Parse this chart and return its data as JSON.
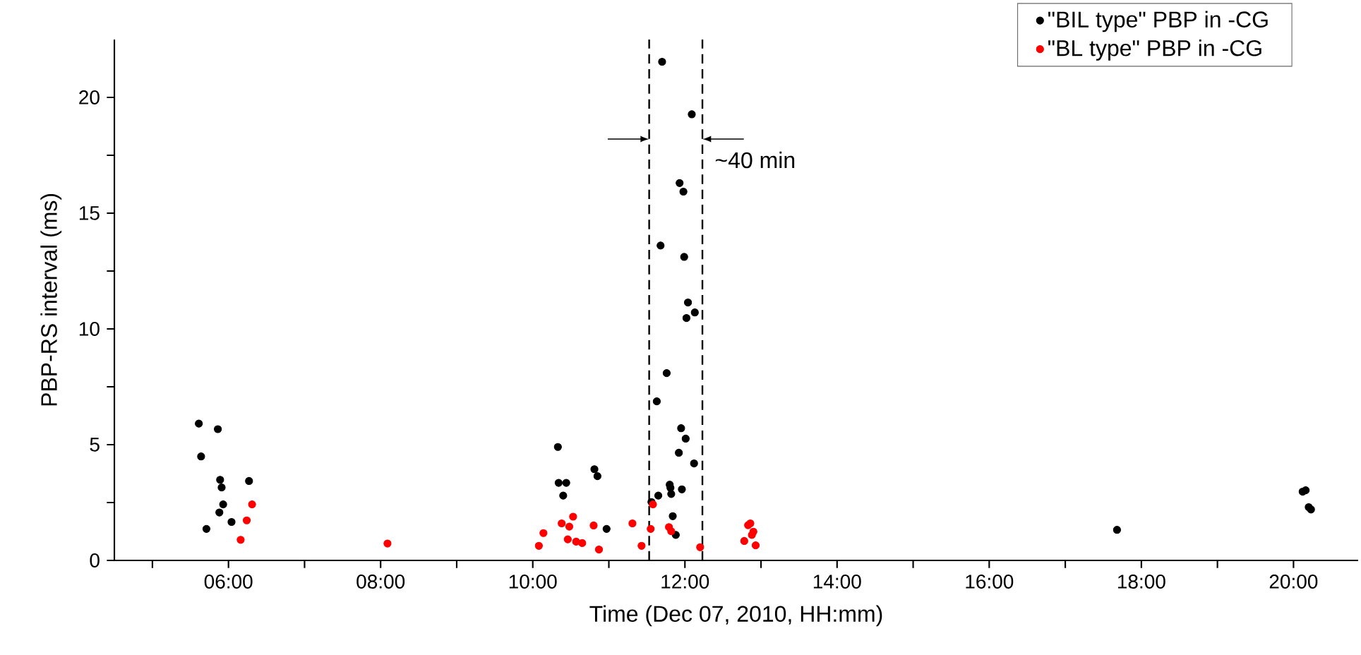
{
  "chart_data": {
    "type": "scatter",
    "xlabel": "Time (Dec 07, 2010, HH:mm)",
    "ylabel": "PBP-RS interval (ms)",
    "xlim": [
      4.5,
      20.85
    ],
    "ylim": [
      0,
      22.5
    ],
    "xticks": [
      {
        "value": 5,
        "label": null
      },
      {
        "value": 6,
        "label": "06:00"
      },
      {
        "value": 7,
        "label": null
      },
      {
        "value": 8,
        "label": "08:00"
      },
      {
        "value": 9,
        "label": null
      },
      {
        "value": 10,
        "label": "10:00"
      },
      {
        "value": 11,
        "label": null
      },
      {
        "value": 12,
        "label": "12:00"
      },
      {
        "value": 13,
        "label": null
      },
      {
        "value": 14,
        "label": "14:00"
      },
      {
        "value": 15,
        "label": null
      },
      {
        "value": 16,
        "label": "16:00"
      },
      {
        "value": 17,
        "label": null
      },
      {
        "value": 18,
        "label": "18:00"
      },
      {
        "value": 19,
        "label": null
      },
      {
        "value": 20,
        "label": "20:00"
      }
    ],
    "yticks": [
      0,
      {
        "value": 2.5,
        "label": null
      },
      5,
      {
        "value": 7.5,
        "label": null
      },
      10,
      {
        "value": 12.5,
        "label": null
      },
      15,
      {
        "value": 17.5,
        "label": null
      },
      20
    ],
    "grid": false,
    "legend": "top right",
    "marker": "circle",
    "series": [
      {
        "name": "\"BIL type\" PBP in -CG",
        "color": "#000000",
        "x": [
          5.61,
          5.86,
          5.64,
          5.89,
          5.91,
          6.27,
          5.93,
          5.88,
          6.04,
          5.71,
          11.63,
          10.33,
          10.34,
          10.44,
          10.4,
          10.81,
          10.85,
          10.97,
          11.95,
          12.01,
          11.92,
          12.12,
          11.96,
          11.8,
          11.81,
          11.82,
          11.65,
          11.56,
          11.84,
          11.88,
          11.7,
          12.09,
          11.93,
          11.98,
          11.68,
          11.99,
          12.04,
          12.02,
          12.13,
          11.76,
          17.68,
          20.12,
          20.16,
          20.2,
          20.23
        ],
        "values": [
          5.91,
          5.67,
          4.49,
          3.48,
          3.15,
          3.43,
          2.42,
          2.07,
          1.66,
          1.36,
          6.87,
          4.9,
          3.35,
          3.35,
          2.8,
          3.94,
          3.64,
          1.36,
          5.71,
          5.26,
          4.65,
          4.19,
          3.07,
          3.27,
          3.13,
          2.87,
          2.8,
          2.52,
          1.91,
          1.1,
          21.54,
          19.27,
          16.3,
          15.93,
          13.6,
          13.11,
          11.14,
          10.47,
          10.71,
          8.09,
          1.32,
          2.97,
          3.03,
          2.3,
          2.2
        ]
      },
      {
        "name": "\"BL type\" PBP in -CG",
        "color": "#ff0000",
        "x": [
          6.31,
          6.24,
          6.16,
          8.09,
          10.08,
          10.14,
          10.38,
          10.48,
          10.53,
          10.46,
          10.57,
          10.65,
          10.8,
          10.87,
          11.31,
          11.43,
          11.55,
          11.58,
          11.79,
          11.82,
          12.2,
          12.78,
          12.83,
          12.86,
          12.9,
          12.88,
          12.93
        ],
        "values": [
          2.42,
          1.73,
          0.89,
          0.73,
          0.63,
          1.18,
          1.6,
          1.46,
          1.89,
          0.91,
          0.81,
          0.75,
          1.51,
          0.47,
          1.6,
          0.63,
          1.36,
          2.42,
          1.44,
          1.26,
          0.57,
          0.84,
          1.52,
          1.6,
          1.24,
          1.1,
          0.65
        ]
      }
    ],
    "ref_lines": [
      {
        "axis": "x",
        "value": 11.53,
        "line_style": "dashed",
        "color": "#000000"
      },
      {
        "axis": "x",
        "value": 12.23,
        "label": "~40 min",
        "line_style": "dashed",
        "color": "#000000"
      }
    ]
  }
}
